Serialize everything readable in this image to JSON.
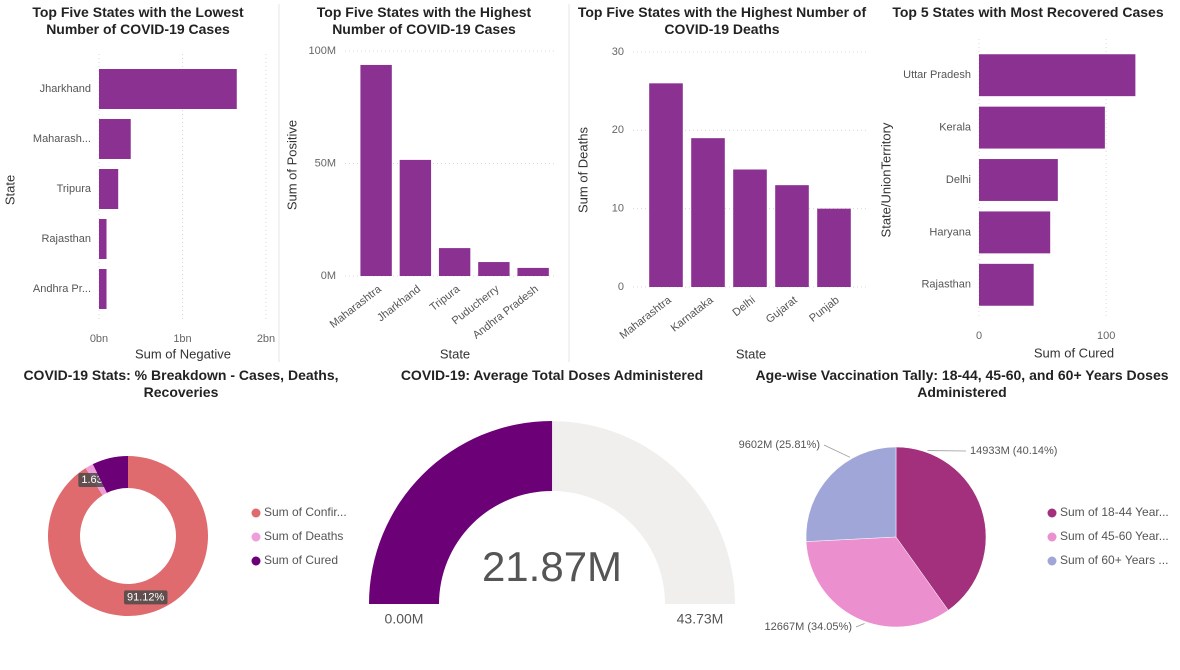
{
  "chart_data": [
    {
      "type": "bar",
      "orientation": "horizontal",
      "title": "Top Five States with the Lowest Number of COVID-19 Cases",
      "x_label": "Sum of Negative",
      "y_label": "State",
      "categories": [
        "Jharkhand",
        "Maharash...",
        "Tripura",
        "Rajasthan",
        "Andhra Pr..."
      ],
      "values": [
        1.65,
        0.38,
        0.23,
        0.09,
        0.09
      ],
      "color": "#8b3192",
      "xlim": [
        0,
        2
      ],
      "xticks": [
        {
          "value": 0,
          "label": "0bn"
        },
        {
          "value": 1,
          "label": "1bn"
        },
        {
          "value": 2,
          "label": "2bn"
        }
      ],
      "grid": true
    },
    {
      "type": "bar",
      "orientation": "vertical",
      "title": "Top Five States with the Highest Number of COVID-19 Cases",
      "x_label": "State",
      "y_label": "Sum of Positive",
      "categories": [
        "Maharashtra",
        "Jharkhand",
        "Tripura",
        "Puducherry",
        "Andhra Pradesh"
      ],
      "values": [
        93.8,
        51.6,
        12.4,
        6.2,
        3.6
      ],
      "color": "#8b3192",
      "ylim": [
        0,
        100
      ],
      "yticks": [
        {
          "value": 0,
          "label": "0M"
        },
        {
          "value": 50,
          "label": "50M"
        },
        {
          "value": 100,
          "label": "100M"
        }
      ],
      "grid": true
    },
    {
      "type": "bar",
      "orientation": "vertical",
      "title": "Top Five States with the Highest Number of COVID-19 Deaths",
      "x_label": "State",
      "y_label": "Sum of Deaths",
      "categories": [
        "Maharashtra",
        "Karnataka",
        "Delhi",
        "Gujarat",
        "Punjab"
      ],
      "values": [
        26,
        19,
        15,
        13,
        10
      ],
      "color": "#8b3192",
      "ylim": [
        0,
        30
      ],
      "yticks": [
        0,
        10,
        20,
        30
      ],
      "grid": true
    },
    {
      "type": "bar",
      "orientation": "horizontal",
      "title": "Top 5 States with Most Recovered Cases",
      "x_label": "Sum of Cured",
      "y_label": "State/UnionTerritory",
      "categories": [
        "Uttar Pradesh",
        "Kerala",
        "Delhi",
        "Haryana",
        "Rajasthan"
      ],
      "values": [
        123,
        99,
        62,
        56,
        43
      ],
      "color": "#8b3192",
      "xlim": [
        0,
        140
      ],
      "xticks": [
        0,
        100
      ],
      "grid": true
    },
    {
      "type": "donut",
      "title": "COVID-19 Stats: % Breakdown - Cases, Deaths, Recoveries",
      "categories": [
        "Sum of Confir...",
        "Sum of Deaths",
        "Sum of Cured"
      ],
      "values": [
        91.12,
        1.63,
        7.25
      ],
      "value_labels": [
        "91.12%",
        "1.63%",
        null
      ],
      "colors": [
        "#e06b6e",
        "#ee9fd9",
        "#6b0077"
      ]
    },
    {
      "type": "gauge",
      "title": "COVID-19: Average Total Doses Administered",
      "value": 21.87,
      "value_label": "21.87M",
      "color": "#6b0077",
      "track_color": "#f0efee",
      "ylim": [
        0,
        43.73
      ],
      "yticks": [
        {
          "value": 0,
          "label": "0.00M"
        },
        {
          "value": 43.73,
          "label": "43.73M"
        }
      ]
    },
    {
      "type": "pie",
      "title": "Age-wise Vaccination Tally: 18-44, 45-60, and 60+ Years Doses Administered",
      "categories": [
        "Sum of 18-44 Year...",
        "Sum of 45-60 Year...",
        "Sum of 60+ Years ..."
      ],
      "values": [
        14933,
        12667,
        9602
      ],
      "value_labels": [
        "14933M (40.14%)",
        "12667M (34.05%)",
        "9602M (25.81%)"
      ],
      "colors": [
        "#a3307c",
        "#ec8fcf",
        "#a1a6d9"
      ]
    }
  ]
}
